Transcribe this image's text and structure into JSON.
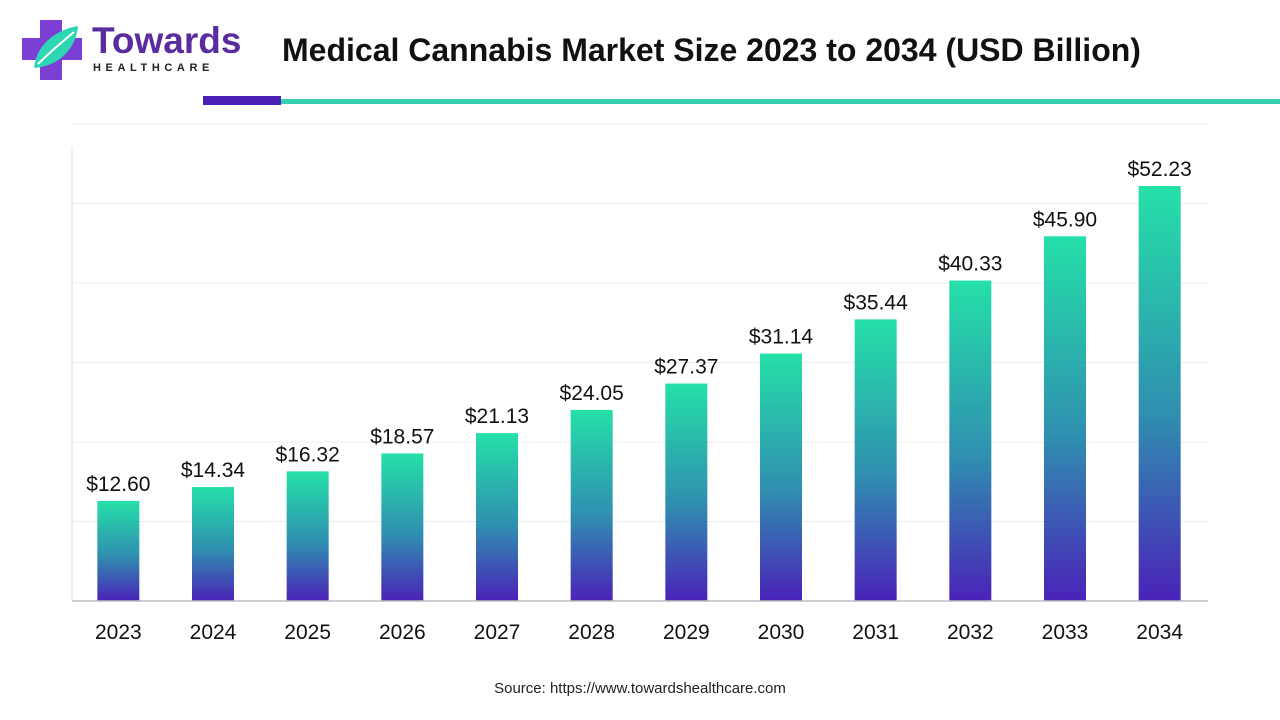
{
  "header": {
    "logo_brand": "Towards",
    "logo_sub": "HEALTHCARE",
    "title": "Medical Cannabis Market Size 2023 to 2034 (USD Billion)"
  },
  "colors": {
    "bar_top": "#25e0a8",
    "bar_mid": "#2f8fb0",
    "bar_bottom": "#4a22b8",
    "accent_dark": "#4a22b8",
    "accent_teal": "#33d1ad"
  },
  "chart_data": {
    "type": "bar",
    "categories": [
      "2023",
      "2024",
      "2025",
      "2026",
      "2027",
      "2028",
      "2029",
      "2030",
      "2031",
      "2032",
      "2033",
      "2034"
    ],
    "values": [
      12.6,
      14.34,
      16.32,
      18.57,
      21.13,
      24.05,
      27.37,
      31.14,
      35.44,
      40.33,
      45.9,
      52.23
    ],
    "value_labels": [
      "$12.60",
      "$14.34",
      "$16.32",
      "$18.57",
      "$21.13",
      "$24.05",
      "$27.37",
      "$31.14",
      "$35.44",
      "$40.33",
      "$45.90",
      "$52.23"
    ],
    "title": "Medical Cannabis Market Size 2023 to 2034 (USD Billion)",
    "xlabel": "",
    "ylabel": "",
    "ylim": [
      0,
      60
    ],
    "grid": true,
    "legend": "none"
  },
  "footer": {
    "source": "Source: https://www.towardshealthcare.com"
  }
}
